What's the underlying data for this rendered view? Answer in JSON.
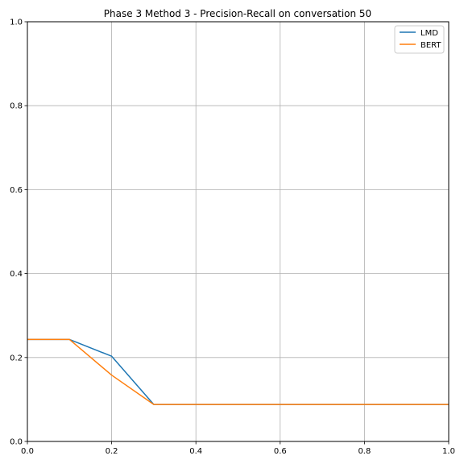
{
  "chart_data": {
    "type": "line",
    "title": "Phase 3 Method 3 - Precision-Recall on conversation 50",
    "xlabel": "",
    "ylabel": "",
    "xlim": [
      0.0,
      1.0
    ],
    "ylim": [
      0.0,
      1.0
    ],
    "x_ticks": [
      "0.0",
      "0.2",
      "0.4",
      "0.6",
      "0.8",
      "1.0"
    ],
    "y_ticks": [
      "0.0",
      "0.2",
      "0.4",
      "0.6",
      "0.8",
      "1.0"
    ],
    "grid": true,
    "legend_position": "top-right",
    "series": [
      {
        "name": "LMD",
        "color": "#1f77b4",
        "x": [
          0.0,
          0.1,
          0.2,
          0.3,
          0.4,
          0.5,
          0.6,
          0.7,
          0.8,
          0.9,
          1.0
        ],
        "y": [
          0.243,
          0.243,
          0.203,
          0.088,
          0.088,
          0.088,
          0.088,
          0.088,
          0.088,
          0.088,
          0.088
        ]
      },
      {
        "name": "BERT",
        "color": "#ff7f0e",
        "x": [
          0.0,
          0.1,
          0.2,
          0.3,
          0.4,
          0.5,
          0.6,
          0.7,
          0.8,
          0.9,
          1.0
        ],
        "y": [
          0.243,
          0.243,
          0.158,
          0.088,
          0.088,
          0.088,
          0.088,
          0.088,
          0.088,
          0.088,
          0.088
        ]
      }
    ]
  }
}
